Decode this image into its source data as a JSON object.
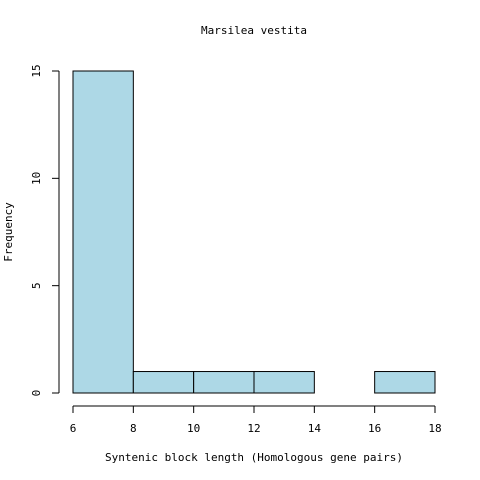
{
  "chart_data": {
    "type": "bar",
    "subtype": "histogram",
    "title": "Marsilea vestita",
    "xlabel": "Syntenic block length (Homologous gene pairs)",
    "ylabel": "Frequency",
    "bins": [
      {
        "start": 6,
        "end": 8,
        "count": 15
      },
      {
        "start": 8,
        "end": 10,
        "count": 1
      },
      {
        "start": 10,
        "end": 12,
        "count": 1
      },
      {
        "start": 12,
        "end": 14,
        "count": 1
      },
      {
        "start": 14,
        "end": 16,
        "count": 0
      },
      {
        "start": 16,
        "end": 18,
        "count": 1
      }
    ],
    "x_ticks": [
      6,
      8,
      10,
      12,
      14,
      16,
      18
    ],
    "y_ticks": [
      0,
      5,
      10,
      15
    ],
    "xlim": [
      6,
      18
    ],
    "ylim": [
      0,
      15
    ],
    "grid": false,
    "legend": "none",
    "bar_color": "#ADD8E6",
    "bar_edge_color": "#000000"
  }
}
